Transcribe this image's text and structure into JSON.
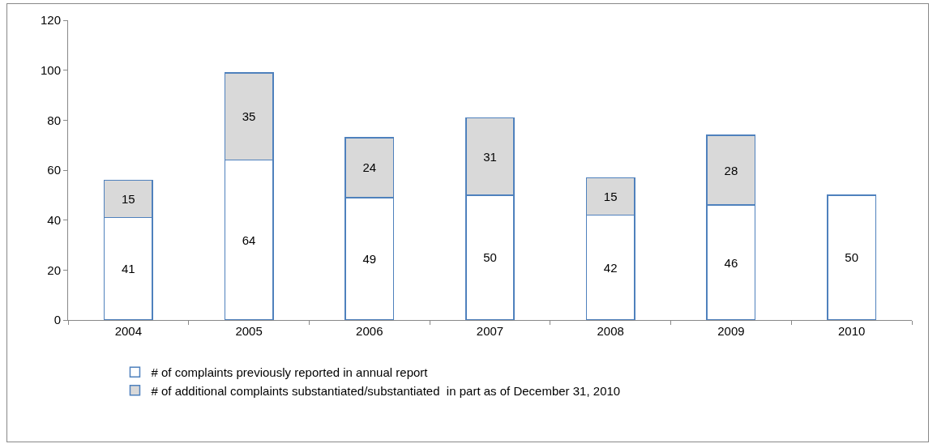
{
  "chart_data": {
    "type": "bar",
    "stacked": true,
    "categories": [
      "2004",
      "2005",
      "2006",
      "2007",
      "2008",
      "2009",
      "2010"
    ],
    "series": [
      {
        "name": "# of complaints previously reported in annual report",
        "color": "#ffffff",
        "values": [
          41,
          64,
          49,
          50,
          42,
          46,
          50
        ]
      },
      {
        "name": "# of additional complaints substantiated/substantiated  in part as of December 31, 2010",
        "color": "#d9d9d9",
        "values": [
          15,
          35,
          24,
          31,
          15,
          28,
          null
        ]
      }
    ],
    "ylim": [
      0,
      120
    ],
    "yticks": [
      0,
      20,
      40,
      60,
      80,
      100,
      120
    ],
    "grid": false,
    "legend": "bottom",
    "data_labels": true
  }
}
